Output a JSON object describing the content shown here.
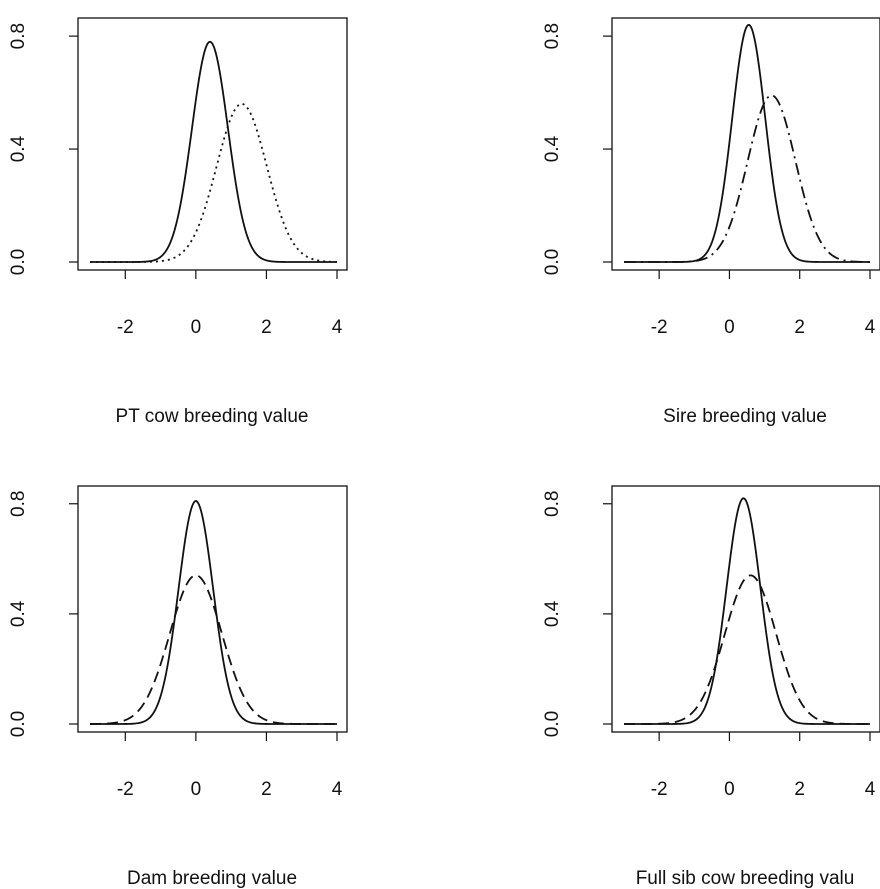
{
  "chart_data": [
    {
      "type": "line",
      "xlabel": "PT cow breeding value",
      "ylabel": "",
      "xlim": [
        -3,
        4
      ],
      "ylim": [
        0,
        0.85
      ],
      "x_ticks": [
        "-2",
        "0",
        "2",
        "4"
      ],
      "y_ticks": [
        "0.0",
        "0.4",
        "0.8"
      ],
      "x_tick_values": [
        -2,
        0,
        2,
        4
      ],
      "y_tick_values": [
        0.0,
        0.4,
        0.8
      ],
      "series": [
        {
          "style": "solid",
          "peak_x": 0.4,
          "peak_y": 0.78,
          "sd": 0.51
        },
        {
          "style": "dotted",
          "peak_x": 1.3,
          "peak_y": 0.56,
          "sd": 0.71
        }
      ]
    },
    {
      "type": "line",
      "xlabel": "Sire breeding value",
      "ylabel": "",
      "xlim": [
        -3,
        4
      ],
      "ylim": [
        0,
        0.85
      ],
      "x_ticks": [
        "-2",
        "0",
        "2",
        "4"
      ],
      "y_ticks": [
        "0.0",
        "0.4",
        "0.8"
      ],
      "x_tick_values": [
        -2,
        0,
        2,
        4
      ],
      "y_tick_values": [
        0.0,
        0.4,
        0.8
      ],
      "series": [
        {
          "style": "solid",
          "peak_x": 0.55,
          "peak_y": 0.84,
          "sd": 0.47
        },
        {
          "style": "dashdot",
          "peak_x": 1.2,
          "peak_y": 0.59,
          "sd": 0.68
        }
      ]
    },
    {
      "type": "line",
      "xlabel": "Dam breeding value",
      "ylabel": "",
      "xlim": [
        -3,
        4
      ],
      "ylim": [
        0,
        0.85
      ],
      "x_ticks": [
        "-2",
        "0",
        "2",
        "4"
      ],
      "y_ticks": [
        "0.0",
        "0.4",
        "0.8"
      ],
      "x_tick_values": [
        -2,
        0,
        2,
        4
      ],
      "y_tick_values": [
        0.0,
        0.4,
        0.8
      ],
      "series": [
        {
          "style": "solid",
          "peak_x": 0.0,
          "peak_y": 0.81,
          "sd": 0.49
        },
        {
          "style": "dashed",
          "peak_x": 0.0,
          "peak_y": 0.54,
          "sd": 0.74
        }
      ]
    },
    {
      "type": "line",
      "xlabel": "Full sib cow breeding valu",
      "ylabel": "",
      "xlim": [
        -3,
        4
      ],
      "ylim": [
        0,
        0.85
      ],
      "x_ticks": [
        "-2",
        "0",
        "2",
        "4"
      ],
      "y_ticks": [
        "0.0",
        "0.4",
        "0.8"
      ],
      "x_tick_values": [
        -2,
        0,
        2,
        4
      ],
      "y_tick_values": [
        0.0,
        0.4,
        0.8
      ],
      "series": [
        {
          "style": "solid",
          "peak_x": 0.4,
          "peak_y": 0.82,
          "sd": 0.48
        },
        {
          "style": "dashed",
          "peak_x": 0.6,
          "peak_y": 0.54,
          "sd": 0.73
        }
      ]
    }
  ]
}
